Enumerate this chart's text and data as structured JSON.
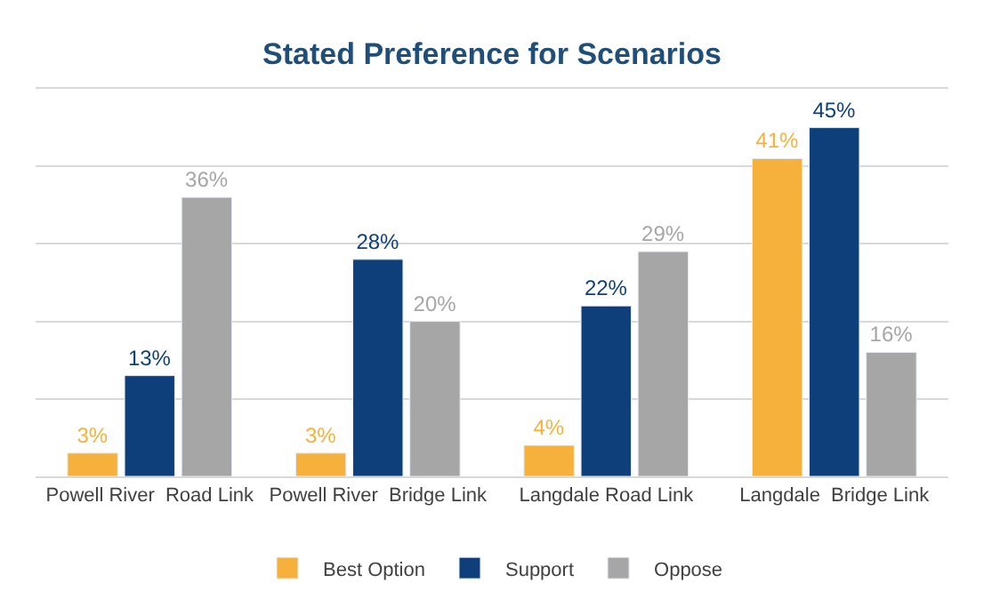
{
  "chart_data": {
    "type": "bar",
    "title": "Stated Preference for Scenarios",
    "categories": [
      "Powell River  Road Link",
      "Powell River  Bridge Link",
      "Langdale Road Link",
      "Langdale  Bridge Link"
    ],
    "series": [
      {
        "name": "Best Option",
        "color": "#f6b13d",
        "values": [
          3,
          3,
          4,
          41
        ],
        "value_labels": [
          "3%",
          "3%",
          "4%",
          "41%"
        ]
      },
      {
        "name": "Support",
        "color": "#0e3f7b",
        "values": [
          13,
          28,
          22,
          45
        ],
        "value_labels": [
          "13%",
          "28%",
          "22%",
          "45%"
        ]
      },
      {
        "name": "Oppose",
        "color": "#a6a6a6",
        "values": [
          36,
          20,
          29,
          16
        ],
        "value_labels": [
          "36%",
          "20%",
          "29%",
          "16%"
        ]
      }
    ],
    "ylim": [
      0,
      50
    ],
    "yticks": [
      {
        "value": 0,
        "label": null
      },
      {
        "value": 10,
        "label": null
      },
      {
        "value": 20,
        "label": null
      },
      {
        "value": 30,
        "label": null
      },
      {
        "value": 40,
        "label": null
      },
      {
        "value": 50,
        "label": null
      }
    ],
    "grid": "y",
    "legend": "bottom",
    "tick_labels": "x"
  }
}
